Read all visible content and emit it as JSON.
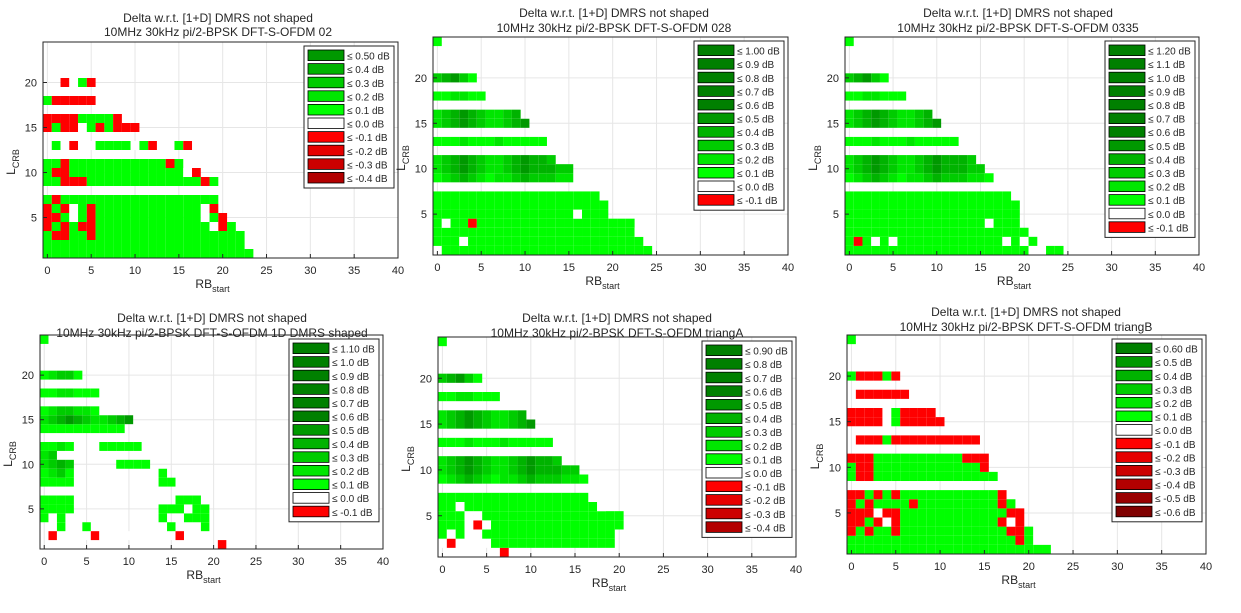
{
  "figure_colors": {
    "positive_scale": [
      "#00ff00",
      "#00e600",
      "#00cc00",
      "#00b300",
      "#009900",
      "#008000"
    ],
    "zero": "#ffffff",
    "negative_scale": [
      "#ff0000",
      "#e60000",
      "#cc0000",
      "#b30000",
      "#990000",
      "#800000"
    ],
    "grid": "#e6e6e6",
    "axes": "#262626"
  },
  "chart_data": [
    {
      "type": "heatmap",
      "title_line1": "Delta w.r.t. [1+D] DMRS not shaped",
      "title_line2": "10MHz 30kHz pi/2-BPSK DFT-S-OFDM 02",
      "xlabel": "RB",
      "xlabel_sub": "start",
      "ylabel": "L",
      "ylabel_sub": "CRB",
      "xlim": [
        -0.5,
        40
      ],
      "ylim": [
        0.5,
        24.5
      ],
      "xticks": [
        0,
        5,
        10,
        15,
        20,
        25,
        30,
        35,
        40
      ],
      "yticks": [
        5,
        10,
        15,
        20
      ],
      "grid": true,
      "legend_position": "top-right",
      "legend": [
        "≤ 0.50 dB",
        "≤ 0.4 dB",
        "≤ 0.3 dB",
        "≤ 0.2 dB",
        "≤ 0.1 dB",
        "≤ 0.0 dB",
        "≤ -0.1 dB",
        "≤ -0.2 dB",
        "≤ -0.3 dB",
        "≤ -0.4 dB"
      ],
      "legend_levels": [
        0.5,
        0.4,
        0.3,
        0.2,
        0.1,
        0.0,
        -0.1,
        -0.2,
        -0.3,
        -0.4
      ],
      "rows": [
        {
          "L": 1,
          "x0": 0,
          "levels": "111111111111111111111111"
        },
        {
          "L": 2,
          "x0": 0,
          "levels": "11111111111111111111111"
        },
        {
          "L": 3,
          "x0": 0,
          "levels": "1nn11n11111111111111111"
        },
        {
          "L": 4,
          "x0": 0,
          "levels": "n1n1nn11111111111110n1"
        },
        {
          "L": 5,
          "x0": 0,
          "levels": "nn101n11111111111101n"
        },
        {
          "L": 6,
          "x0": 0,
          "levels": "n1n01n1111111111110n"
        },
        {
          "L": 7,
          "x0": 0,
          "levels": "1n111111111111111111"
        },
        {
          "L": 9,
          "x0": 0,
          "levels": "11nnn1111111111111n1"
        },
        {
          "L": 10,
          "x0": 0,
          "levels": "1nn11111111111110n"
        },
        {
          "L": 11,
          "x0": 0,
          "levels": "11n11111111111n1"
        },
        {
          "L": 13,
          "x0": 1,
          "levels": "10n00111101n001n"
        },
        {
          "L": 15,
          "x0": 0,
          "levels": "n1nn01n1nnn"
        },
        {
          "L": 16,
          "x0": 0,
          "levels": "nnnn1111n"
        },
        {
          "L": 18,
          "x0": 0,
          "levels": "1nnnnn"
        },
        {
          "L": 20,
          "x0": 2,
          "levels": "n01n"
        }
      ]
    },
    {
      "type": "heatmap",
      "title_line1": "Delta w.r.t. [1+D] DMRS not shaped",
      "title_line2": "10MHz 30kHz pi/2-BPSK DFT-S-OFDM 028",
      "xlabel": "RB",
      "xlabel_sub": "start",
      "ylabel": "L",
      "ylabel_sub": "CRB",
      "xlim": [
        -0.5,
        40
      ],
      "ylim": [
        0.5,
        24.5
      ],
      "xticks": [
        0,
        5,
        10,
        15,
        20,
        25,
        30,
        35,
        40
      ],
      "yticks": [
        5,
        10,
        15,
        20
      ],
      "grid": true,
      "legend_position": "top-right",
      "legend": [
        "≤ 1.00 dB",
        "≤ 0.9 dB",
        "≤ 0.8 dB",
        "≤ 0.7 dB",
        "≤ 0.6 dB",
        "≤ 0.5 dB",
        "≤ 0.4 dB",
        "≤ 0.3 dB",
        "≤ 0.2 dB",
        "≤ 0.1 dB",
        "≤ 0.0 dB",
        "≤ -0.1 dB"
      ],
      "legend_levels": [
        1.0,
        0.9,
        0.8,
        0.7,
        0.6,
        0.5,
        0.4,
        0.3,
        0.2,
        0.1,
        0.0,
        -0.1
      ],
      "rows": [
        {
          "L": 1,
          "x0": 0,
          "levels": "0111111111111111111111111"
        },
        {
          "L": 2,
          "x0": 0,
          "levels": "1110111111111111111111110"
        },
        {
          "L": 3,
          "x0": 0,
          "levels": "111111111111111111111110"
        },
        {
          "L": 4,
          "x0": 0,
          "levels": "1011n111111111111111111"
        },
        {
          "L": 5,
          "x0": 0,
          "levels": "11111111111111110111"
        },
        {
          "L": 6,
          "x0": 0,
          "levels": "11111111111111111111"
        },
        {
          "L": 7,
          "x0": 0,
          "levels": "1111111111111111111"
        },
        {
          "L": 9,
          "x0": 0,
          "levels": "1234321223433322"
        },
        {
          "L": 10,
          "x0": 0,
          "levels": "2345432234544433"
        },
        {
          "L": 11,
          "x0": 0,
          "levels": "23454322345443"
        },
        {
          "L": 13,
          "x0": 0,
          "levels": "1112111211111"
        },
        {
          "L": 15,
          "x0": 0,
          "levels": "23454322345"
        },
        {
          "L": 16,
          "x0": 0,
          "levels": "2345432234"
        },
        {
          "L": 18,
          "x0": 0,
          "levels": "112211"
        },
        {
          "L": 20,
          "x0": 0,
          "levels": "34531"
        },
        {
          "L": 24,
          "x0": 0,
          "levels": "1"
        }
      ]
    },
    {
      "type": "heatmap",
      "title_line1": "Delta w.r.t. [1+D] DMRS not shaped",
      "title_line2": "10MHz 30kHz pi/2-BPSK DFT-S-OFDM 0335",
      "xlabel": "RB",
      "xlabel_sub": "start",
      "ylabel": "L",
      "ylabel_sub": "CRB",
      "xlim": [
        -0.5,
        40
      ],
      "ylim": [
        0.5,
        24.5
      ],
      "xticks": [
        0,
        5,
        10,
        15,
        20,
        25,
        30,
        35,
        40
      ],
      "yticks": [
        5,
        10,
        15,
        20
      ],
      "grid": true,
      "legend_position": "top-right",
      "legend": [
        "≤ 1.20 dB",
        "≤ 1.1 dB",
        "≤ 1.0 dB",
        "≤ 0.9 dB",
        "≤ 0.8 dB",
        "≤ 0.7 dB",
        "≤ 0.6 dB",
        "≤ 0.5 dB",
        "≤ 0.4 dB",
        "≤ 0.3 dB",
        "≤ 0.2 dB",
        "≤ 0.1 dB",
        "≤ 0.0 dB",
        "≤ -0.1 dB"
      ],
      "legend_levels": [
        1.2,
        1.1,
        1.0,
        0.9,
        0.8,
        0.7,
        0.6,
        0.5,
        0.4,
        0.3,
        0.2,
        0.1,
        0.0,
        -0.1
      ],
      "rows": [
        {
          "L": 1,
          "x0": 0,
          "levels": "1111111111111111111110011"
        },
        {
          "L": 2,
          "x0": 0,
          "levels": "1n10101111111111110101"
        },
        {
          "L": 3,
          "x0": 0,
          "levels": "111111111111111111111"
        },
        {
          "L": 4,
          "x0": 0,
          "levels": "11111111111111110111"
        },
        {
          "L": 5,
          "x0": 0,
          "levels": "11111111111111111111"
        },
        {
          "L": 6,
          "x0": 0,
          "levels": "11111111111111111111"
        },
        {
          "L": 7,
          "x0": 0,
          "levels": "1111111111111111111"
        },
        {
          "L": 9,
          "x0": 0,
          "levels": "12343212234333221"
        },
        {
          "L": 10,
          "x0": 0,
          "levels": "2345432234544433"
        },
        {
          "L": 11,
          "x0": 0,
          "levels": "234543223454443"
        },
        {
          "L": 13,
          "x0": 0,
          "levels": "1112111211111"
        },
        {
          "L": 15,
          "x0": 0,
          "levels": "23454322345"
        },
        {
          "L": 16,
          "x0": 0,
          "levels": "2345432234"
        },
        {
          "L": 18,
          "x0": 0,
          "levels": "1122111"
        },
        {
          "L": 20,
          "x0": 0,
          "levels": "34531"
        },
        {
          "L": 24,
          "x0": 0,
          "levels": "1"
        }
      ]
    },
    {
      "type": "heatmap",
      "title_line1": "Delta w.r.t. [1+D] DMRS not shaped",
      "title_line2": "10MHz 30kHz pi/2-BPSK DFT-S-OFDM 1D DMRS shaped",
      "xlabel": "RB",
      "xlabel_sub": "start",
      "ylabel": "L",
      "ylabel_sub": "CRB",
      "xlim": [
        -0.5,
        40
      ],
      "ylim": [
        0.5,
        24.5
      ],
      "xticks": [
        0,
        5,
        10,
        15,
        20,
        25,
        30,
        35,
        40
      ],
      "yticks": [
        5,
        10,
        15,
        20
      ],
      "grid": true,
      "legend_position": "top-right",
      "legend": [
        "≤ 1.10 dB",
        "≤ 1.0 dB",
        "≤ 0.9 dB",
        "≤ 0.8 dB",
        "≤ 0.7 dB",
        "≤ 0.6 dB",
        "≤ 0.5 dB",
        "≤ 0.4 dB",
        "≤ 0.3 dB",
        "≤ 0.2 dB",
        "≤ 0.1 dB",
        "≤ 0.0 dB",
        "≤ -0.1 dB"
      ],
      "legend_levels": [
        1.1,
        1.0,
        0.9,
        0.8,
        0.7,
        0.6,
        0.5,
        0.4,
        0.3,
        0.2,
        0.1,
        0.0,
        -0.1
      ],
      "rows": [
        {
          "L": 1,
          "x0": 21,
          "levels": "n"
        },
        {
          "L": 2,
          "x0": 1,
          "levels": "n0000n000000000n"
        },
        {
          "L": 3,
          "x0": 2,
          "levels": "1"
        },
        {
          "L": 3,
          "x0": 5,
          "levels": "1"
        },
        {
          "L": 3,
          "x0": 15,
          "levels": "1"
        },
        {
          "L": 3,
          "x0": 19,
          "levels": "1"
        },
        {
          "L": 4,
          "x0": 0,
          "levels": "101"
        },
        {
          "L": 4,
          "x0": 14,
          "levels": "1"
        },
        {
          "L": 4,
          "x0": 17,
          "levels": "111"
        },
        {
          "L": 5,
          "x0": 0,
          "levels": "1111"
        },
        {
          "L": 5,
          "x0": 14,
          "levels": "111011"
        },
        {
          "L": 6,
          "x0": 0,
          "levels": "1111"
        },
        {
          "L": 6,
          "x0": 16,
          "levels": "111"
        },
        {
          "L": 8,
          "x0": 0,
          "levels": "1111"
        },
        {
          "L": 8,
          "x0": 14,
          "levels": "11"
        },
        {
          "L": 9,
          "x0": 0,
          "levels": "1231"
        },
        {
          "L": 9,
          "x0": 14,
          "levels": "1"
        },
        {
          "L": 10,
          "x0": 0,
          "levels": "2343"
        },
        {
          "L": 10,
          "x0": 9,
          "levels": "1111"
        },
        {
          "L": 11,
          "x0": 0,
          "levels": "23"
        },
        {
          "L": 12,
          "x0": 0,
          "levels": "1121"
        },
        {
          "L": 12,
          "x0": 7,
          "levels": "11111"
        },
        {
          "L": 14,
          "x0": 0,
          "levels": "1111111111"
        },
        {
          "L": 15,
          "x0": 0,
          "levels": "23454322345"
        },
        {
          "L": 16,
          "x0": 0,
          "levels": "1233221"
        },
        {
          "L": 18,
          "x0": 0,
          "levels": "1122111"
        },
        {
          "L": 20,
          "x0": 0,
          "levels": "12331"
        },
        {
          "L": 24,
          "x0": 0,
          "levels": "1"
        }
      ]
    },
    {
      "type": "heatmap",
      "title_line1": "Delta w.r.t. [1+D] DMRS not shaped",
      "title_line2": "10MHz 30kHz pi/2-BPSK DFT-S-OFDM triangA",
      "xlabel": "RB",
      "xlabel_sub": "start",
      "ylabel": "L",
      "ylabel_sub": "CRB",
      "xlim": [
        -0.5,
        40
      ],
      "ylim": [
        0.5,
        24.5
      ],
      "xticks": [
        0,
        5,
        10,
        15,
        20,
        25,
        30,
        35,
        40
      ],
      "yticks": [
        5,
        10,
        15,
        20
      ],
      "grid": true,
      "legend_position": "top-right",
      "legend": [
        "≤ 0.90 dB",
        "≤ 0.8 dB",
        "≤ 0.7 dB",
        "≤ 0.6 dB",
        "≤ 0.5 dB",
        "≤ 0.4 dB",
        "≤ 0.3 dB",
        "≤ 0.2 dB",
        "≤ 0.1 dB",
        "≤ 0.0 dB",
        "≤ -0.1 dB",
        "≤ -0.2 dB",
        "≤ -0.3 dB",
        "≤ -0.4 dB"
      ],
      "legend_levels": [
        0.9,
        0.8,
        0.7,
        0.6,
        0.5,
        0.4,
        0.3,
        0.2,
        0.1,
        0.0,
        -0.1,
        -0.2,
        -0.3,
        -0.4
      ],
      "rows": [
        {
          "L": 1,
          "x0": 7,
          "levels": "n"
        },
        {
          "L": 2,
          "x0": 0,
          "levels": "0n000011111111111111"
        },
        {
          "L": 3,
          "x0": 0,
          "levels": "10100111111111111111"
        },
        {
          "L": 4,
          "x0": 0,
          "levels": "1110n0111111111111111"
        },
        {
          "L": 5,
          "x0": 0,
          "levels": "111001111111111111111"
        },
        {
          "L": 6,
          "x0": 0,
          "levels": "1101111111111111110"
        },
        {
          "L": 7,
          "x0": 0,
          "levels": "11111111111111111"
        },
        {
          "L": 9,
          "x0": 0,
          "levels": "12343212234333221"
        },
        {
          "L": 10,
          "x0": 0,
          "levels": "2345432234544433"
        },
        {
          "L": 11,
          "x0": 0,
          "levels": "23454322345443"
        },
        {
          "L": 13,
          "x0": 0,
          "levels": "1112111211111"
        },
        {
          "L": 15,
          "x0": 0,
          "levels": "23454322345"
        },
        {
          "L": 16,
          "x0": 0,
          "levels": "2345432234"
        },
        {
          "L": 18,
          "x0": 0,
          "levels": "1122111"
        },
        {
          "L": 20,
          "x0": 0,
          "levels": "34531"
        },
        {
          "L": 24,
          "x0": 0,
          "levels": "1"
        }
      ]
    },
    {
      "type": "heatmap",
      "title_line1": "Delta w.r.t. [1+D] DMRS not shaped",
      "title_line2": "10MHz 30kHz pi/2-BPSK DFT-S-OFDM triangB",
      "xlabel": "RB",
      "xlabel_sub": "start",
      "ylabel": "L",
      "ylabel_sub": "CRB",
      "xlim": [
        -0.5,
        40
      ],
      "ylim": [
        0.5,
        24.5
      ],
      "xticks": [
        0,
        5,
        10,
        15,
        20,
        25,
        30,
        35,
        40
      ],
      "yticks": [
        5,
        10,
        15,
        20
      ],
      "grid": true,
      "legend_position": "top-right",
      "legend": [
        "≤ 0.60 dB",
        "≤ 0.5 dB",
        "≤ 0.4 dB",
        "≤ 0.3 dB",
        "≤ 0.2 dB",
        "≤ 0.1 dB",
        "≤ 0.0 dB",
        "≤ -0.1 dB",
        "≤ -0.2 dB",
        "≤ -0.3 dB",
        "≤ -0.4 dB",
        "≤ -0.5 dB",
        "≤ -0.6 dB"
      ],
      "legend_levels": [
        0.6,
        0.5,
        0.4,
        0.3,
        0.2,
        0.1,
        0.0,
        -0.1,
        -0.2,
        -0.3,
        -0.4,
        -0.5,
        -0.6
      ],
      "rows": [
        {
          "L": 1,
          "x0": 0,
          "levels": "11111111111111111111111"
        },
        {
          "L": 2,
          "x0": 0,
          "levels": "1111111111111111111n1"
        },
        {
          "L": 3,
          "x0": 0,
          "levels": "n1n11n111111111111nn1"
        },
        {
          "L": 4,
          "x0": 0,
          "levels": "nn1n0n11111111111n0n"
        },
        {
          "L": 5,
          "x0": 0,
          "levels": "nnn0nn111111111111nn"
        },
        {
          "L": 6,
          "x0": 0,
          "levels": "n1n1111n111111111n1"
        },
        {
          "L": 7,
          "x0": 0,
          "levels": "nn1n1n11111111111n"
        },
        {
          "L": 9,
          "x0": 0,
          "levels": "1nn11111111111111"
        },
        {
          "L": 10,
          "x0": 0,
          "levels": "1nn111111111111n"
        },
        {
          "L": 11,
          "x0": 0,
          "levels": "nnn1111111111nnn"
        },
        {
          "L": 13,
          "x0": 1,
          "levels": "nnn1nnnnnnnnnn"
        },
        {
          "L": 15,
          "x0": 0,
          "levels": "nnnn01nnnnn"
        },
        {
          "L": 16,
          "x0": 0,
          "levels": "nnnn01nnnn"
        },
        {
          "L": 18,
          "x0": 1,
          "levels": "nnnnnn"
        },
        {
          "L": 20,
          "x0": 0,
          "levels": "1nnn1n"
        },
        {
          "L": 24,
          "x0": 0,
          "levels": "1"
        }
      ]
    }
  ]
}
